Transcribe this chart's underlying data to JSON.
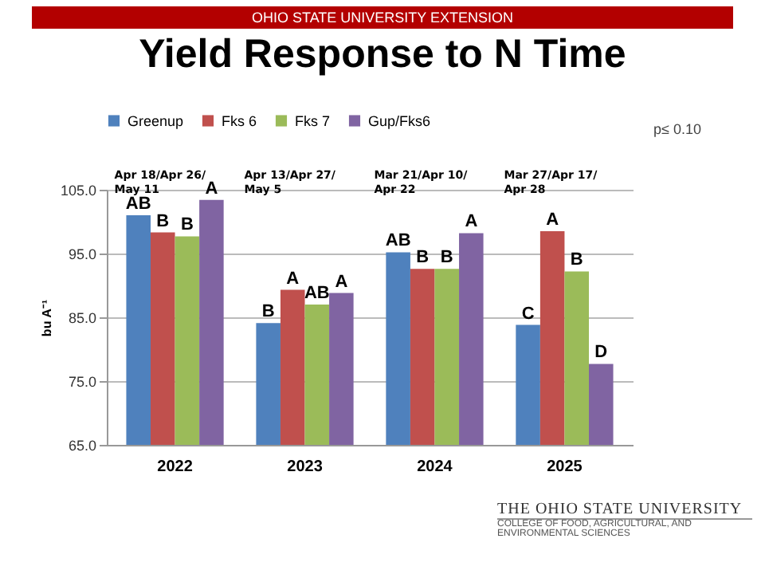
{
  "chart_data": {
    "type": "bar",
    "title": "Yield Response to N Time",
    "ylabel": "bu A⁻¹",
    "categories": [
      "2022",
      "2023",
      "2024",
      "2025"
    ],
    "series": [
      {
        "name": "Greenup",
        "color": "#4f81bd",
        "values": [
          101.0,
          84.1,
          95.2,
          83.8
        ],
        "value_labels": [
          "AB",
          "B",
          "AB",
          "C"
        ]
      },
      {
        "name": "Fks 6",
        "color": "#c0504d",
        "values": [
          98.3,
          89.3,
          92.6,
          98.5
        ],
        "value_labels": [
          "B",
          "A",
          "B",
          "A"
        ]
      },
      {
        "name": "Fks 7",
        "color": "#9bbb59",
        "values": [
          97.7,
          87.0,
          92.6,
          92.2
        ],
        "value_labels": [
          "B",
          "AB",
          "B",
          "B"
        ]
      },
      {
        "name": "Gup/Fks6",
        "color": "#8064a2",
        "values": [
          103.4,
          88.8,
          98.2,
          77.7
        ],
        "value_labels": [
          "A",
          "A",
          "A",
          "D"
        ]
      }
    ],
    "ylim": [
      65,
      105
    ],
    "yticks": [
      {
        "value": 65,
        "label": "65.0"
      },
      {
        "value": 75,
        "label": "75.0"
      },
      {
        "value": 85,
        "label": "85.0"
      },
      {
        "value": 95,
        "label": "95.0"
      },
      {
        "value": 105,
        "label": "105.0"
      }
    ],
    "grid": "y",
    "legend": "top",
    "annotations": [
      "OHIO STATE UNIVERSITY EXTENSION",
      "p≤ 0.10",
      "THE OHIO STATE UNIVERSITY",
      "COLLEGE OF FOOD, AGRICULTURAL, AND ENVIRONMENTAL SCIENCES",
      "Apr 18/Apr 26/May 11",
      "Apr 13/Apr 27/May 5",
      "Mar 21/Apr 10/Apr 22",
      "Mar 27/Apr 17/Apr 28"
    ]
  }
}
